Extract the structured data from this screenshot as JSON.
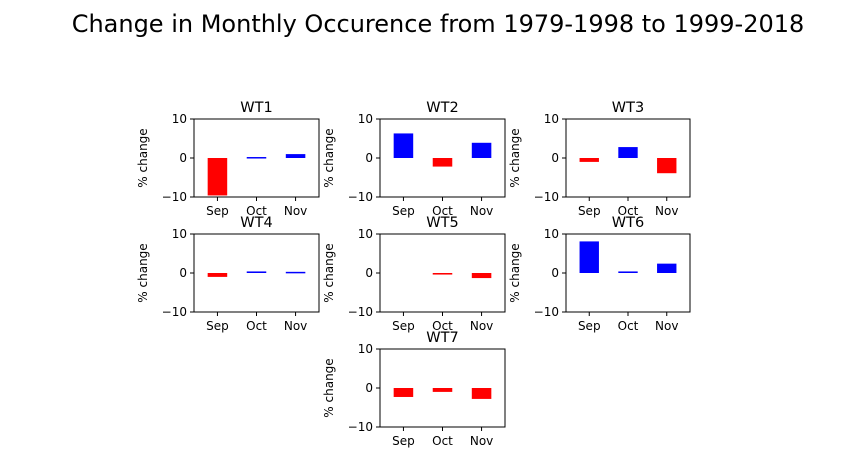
{
  "figure": {
    "suptitle": "Change in Monthly Occurence from 1979-1998 to 1999-2018"
  },
  "colors": {
    "positive": "#0000ff",
    "negative": "#ff0000"
  },
  "chart_data": [
    {
      "type": "bar",
      "title": "WT1",
      "categories": [
        "Sep",
        "Oct",
        "Nov"
      ],
      "values": [
        -9.6,
        0.25,
        1.0
      ],
      "ylabel": "% change",
      "ylim": [
        -10,
        10
      ],
      "yticks": [
        "10",
        "0",
        "−10"
      ],
      "grid": false,
      "legend": "none"
    },
    {
      "type": "bar",
      "title": "WT2",
      "categories": [
        "Sep",
        "Oct",
        "Nov"
      ],
      "values": [
        6.3,
        -2.2,
        3.9
      ],
      "ylabel": "% change",
      "ylim": [
        -10,
        10
      ],
      "yticks": [
        "10",
        "0",
        "−10"
      ],
      "grid": false,
      "legend": "none"
    },
    {
      "type": "bar",
      "title": "WT3",
      "categories": [
        "Sep",
        "Oct",
        "Nov"
      ],
      "values": [
        -1.0,
        2.8,
        -3.9
      ],
      "ylabel": "% change",
      "ylim": [
        -10,
        10
      ],
      "yticks": [
        "10",
        "0",
        "−10"
      ],
      "grid": false,
      "legend": "none"
    },
    {
      "type": "bar",
      "title": "WT4",
      "categories": [
        "Sep",
        "Oct",
        "Nov"
      ],
      "values": [
        -1.0,
        0.4,
        0.3
      ],
      "ylabel": "% change",
      "ylim": [
        -10,
        10
      ],
      "yticks": [
        "10",
        "0",
        "−10"
      ],
      "grid": false,
      "legend": "none"
    },
    {
      "type": "bar",
      "title": "WT5",
      "categories": [
        "Sep",
        "Oct",
        "Nov"
      ],
      "values": [
        0.0,
        -0.4,
        -1.3
      ],
      "ylabel": "% change",
      "ylim": [
        -10,
        10
      ],
      "yticks": [
        "10",
        "0",
        "−10"
      ],
      "grid": false,
      "legend": "none"
    },
    {
      "type": "bar",
      "title": "WT6",
      "categories": [
        "Sep",
        "Oct",
        "Nov"
      ],
      "values": [
        8.1,
        0.4,
        2.4
      ],
      "ylabel": "% change",
      "ylim": [
        -10,
        10
      ],
      "yticks": [
        "10",
        "0",
        "−10"
      ],
      "grid": false,
      "legend": "none"
    },
    {
      "type": "bar",
      "title": "WT7",
      "categories": [
        "Sep",
        "Oct",
        "Nov"
      ],
      "values": [
        -2.3,
        -1.0,
        -2.8
      ],
      "ylabel": "% change",
      "ylim": [
        -10,
        10
      ],
      "yticks": [
        "10",
        "0",
        "−10"
      ],
      "grid": false,
      "legend": "none"
    }
  ]
}
